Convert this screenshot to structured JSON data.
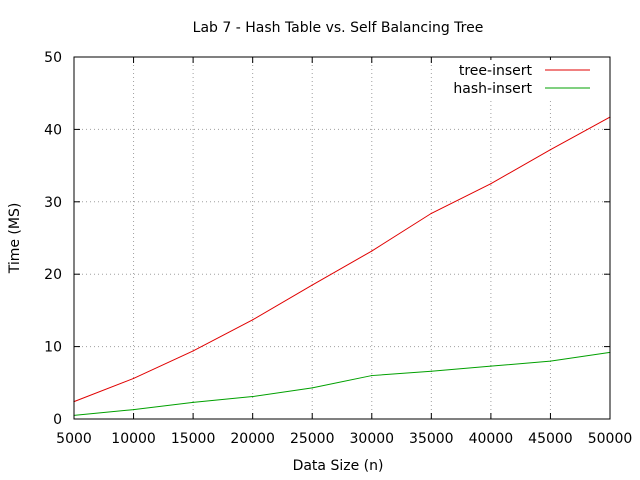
{
  "chart_data": {
    "type": "line",
    "title": "Lab 7 - Hash Table vs. Self Balancing Tree",
    "xlabel": "Data Size (n)",
    "ylabel": "Time (MS)",
    "xlim": [
      5000,
      50000
    ],
    "ylim": [
      0,
      50
    ],
    "xticks": [
      5000,
      10000,
      15000,
      20000,
      25000,
      30000,
      35000,
      40000,
      45000,
      50000
    ],
    "yticks": [
      0,
      10,
      20,
      30,
      40,
      50
    ],
    "grid": true,
    "legend_position": "top-right",
    "x": [
      5000,
      10000,
      15000,
      20000,
      25000,
      30000,
      35000,
      40000,
      45000,
      50000
    ],
    "series": [
      {
        "name": "tree-insert",
        "color": "#e00000",
        "values": [
          2.4,
          5.6,
          9.4,
          13.7,
          18.5,
          23.2,
          28.4,
          32.5,
          37.2,
          41.7
        ]
      },
      {
        "name": "hash-insert",
        "color": "#00a000",
        "values": [
          0.5,
          1.3,
          2.3,
          3.1,
          4.3,
          6.0,
          6.6,
          7.3,
          8.0,
          9.2
        ]
      }
    ]
  }
}
